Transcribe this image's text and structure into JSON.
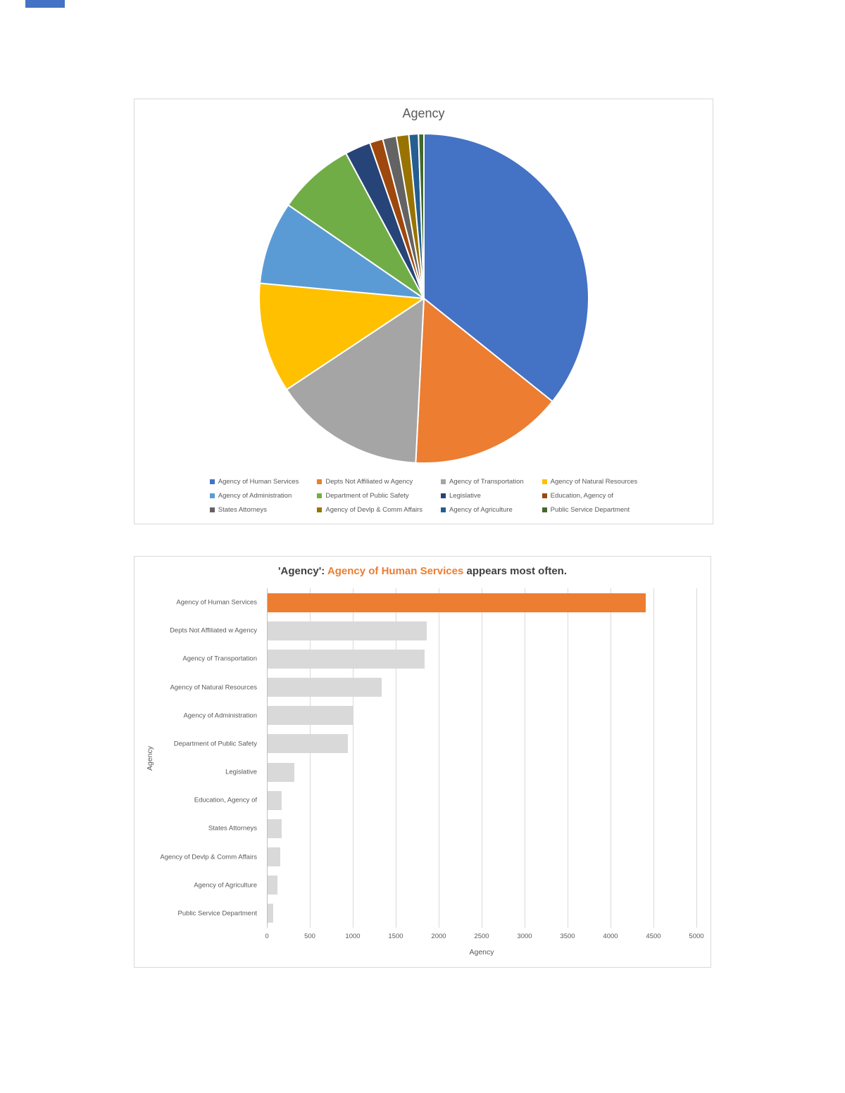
{
  "page": {
    "background": "#FFFFFF"
  },
  "chart_data": [
    {
      "type": "pie",
      "title": "Agency",
      "categories": [
        "Agency of Human Services",
        "Depts Not Affiliated w Agency",
        "Agency of Transportation",
        "Agency of Natural Resources",
        "Agency of Administration",
        "Department of Public Safety",
        "Legislative",
        "Education, Agency of",
        "States Attorneys",
        "Agency of Devlp & Comm Affairs",
        "Agency of Agriculture",
        "Public Service Department"
      ],
      "values": [
        4400,
        1850,
        1830,
        1330,
        1000,
        930,
        310,
        160,
        165,
        150,
        115,
        65
      ],
      "colors": [
        "#4472C4",
        "#ED7D31",
        "#A5A5A5",
        "#FFC000",
        "#5B9BD5",
        "#70AD47",
        "#264478",
        "#9E480E",
        "#636363",
        "#997300",
        "#255E91",
        "#43682B"
      ],
      "legend_position": "bottom",
      "grid": false
    },
    {
      "type": "bar",
      "orientation": "horizontal",
      "title_parts": [
        "'Agency': ",
        "Agency of Human Services",
        " appears most often."
      ],
      "categories": [
        "Agency of Human Services",
        "Depts Not Affiliated w Agency",
        "Agency of Transportation",
        "Agency of Natural Resources",
        "Agency of Administration",
        "Department of Public Safety",
        "Legislative",
        "Education, Agency of",
        "States Attorneys",
        "Agency of Devlp & Comm Affairs",
        "Agency of Agriculture",
        "Public Service Department"
      ],
      "values": [
        4400,
        1850,
        1830,
        1330,
        1000,
        930,
        310,
        160,
        165,
        150,
        115,
        65
      ],
      "bar_color": "#D9D9D9",
      "highlight_color": "#ED7D31",
      "highlight_index": 0,
      "xlabel": "Agency",
      "ylabel": "Agency",
      "xlim": [
        0,
        5000
      ],
      "xticks": [
        0,
        500,
        1000,
        1500,
        2000,
        2500,
        3000,
        3500,
        4000,
        4500,
        5000
      ],
      "grid": true,
      "legend_position": "none"
    }
  ]
}
